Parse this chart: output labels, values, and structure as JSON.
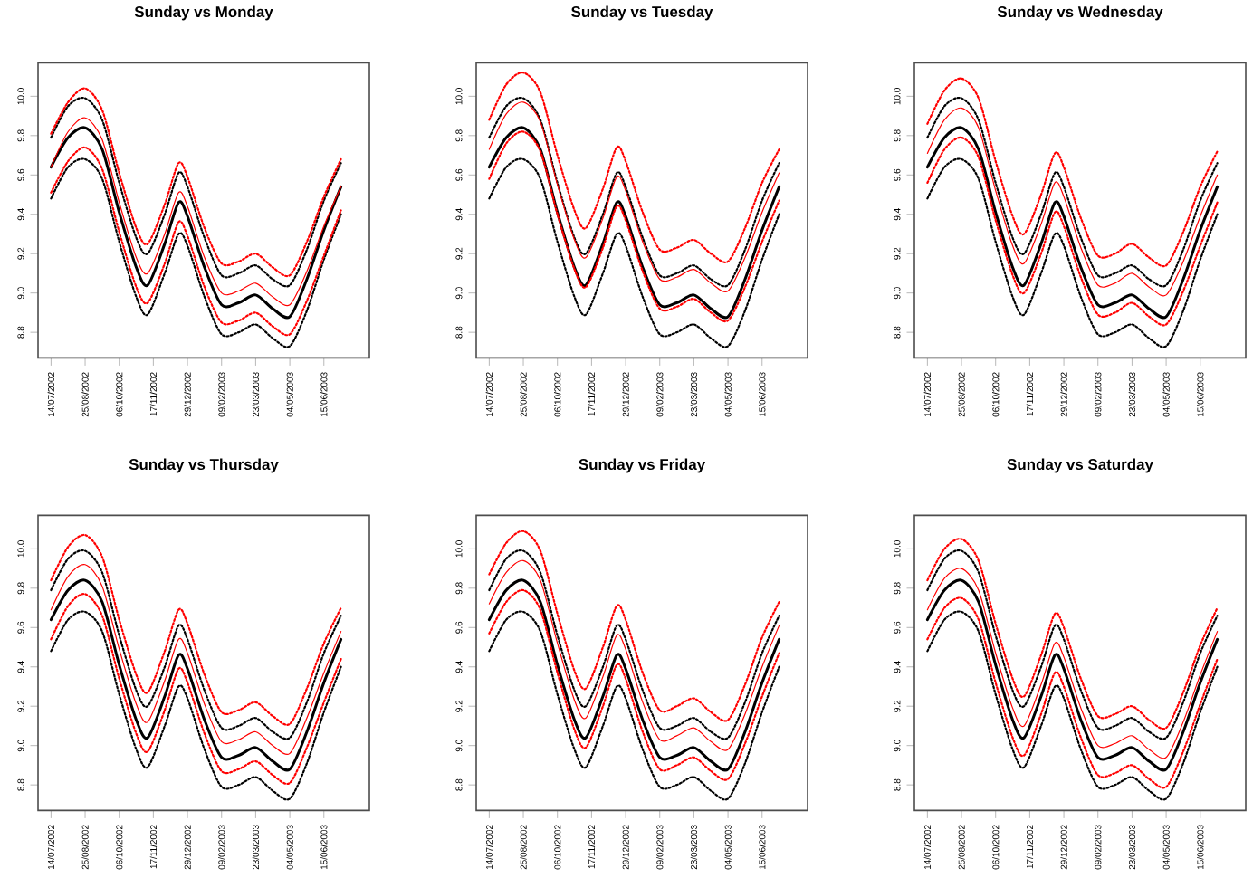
{
  "chart_data": [
    {
      "type": "line",
      "title": "Sunday vs Monday",
      "marker": "none",
      "x": [
        "2002-07-14",
        "2002-08-04",
        "2002-08-25",
        "2002-09-15",
        "2002-10-06",
        "2002-10-27",
        "2002-11-10",
        "2002-12-01",
        "2002-12-18",
        "2002-12-29",
        "2003-01-19",
        "2003-02-09",
        "2003-03-02",
        "2003-03-23",
        "2003-04-13",
        "2003-05-04",
        "2003-05-25",
        "2003-06-15",
        "2003-07-06"
      ],
      "xlim": [
        "2002-06-28",
        "2003-08-10"
      ],
      "xticks": [
        {
          "value": "2002-07-14",
          "label": "14/07/2002"
        },
        {
          "value": "2002-08-25",
          "label": "25/08/2002"
        },
        {
          "value": "2002-10-06",
          "label": "06/10/2002"
        },
        {
          "value": "2002-11-17",
          "label": "17/11/2002"
        },
        {
          "value": "2002-12-29",
          "label": "29/12/2002"
        },
        {
          "value": "2003-02-09",
          "label": "09/02/2003"
        },
        {
          "value": "2003-03-23",
          "label": "23/03/2003"
        },
        {
          "value": "2003-05-04",
          "label": "04/05/2003"
        },
        {
          "value": "2003-06-15",
          "label": "15/06/2003"
        }
      ],
      "ylim": [
        8.67,
        10.17
      ],
      "yticks": [
        {
          "value": 8.8,
          "label": "8.8"
        },
        {
          "value": 9.0,
          "label": "9.0"
        },
        {
          "value": 9.2,
          "label": "9.2"
        },
        {
          "value": 9.4,
          "label": "9.4"
        },
        {
          "value": 9.6,
          "label": "9.6"
        },
        {
          "value": 9.8,
          "label": "9.8"
        },
        {
          "value": 10.0,
          "label": "10.0"
        }
      ],
      "series": [
        {
          "color": "#000000",
          "line_style": "solid",
          "values": [
            9.64,
            9.79,
            9.84,
            9.73,
            9.41,
            9.13,
            9.04,
            9.25,
            9.46,
            9.39,
            9.13,
            8.94,
            8.95,
            8.99,
            8.92,
            8.88,
            9.07,
            9.32,
            9.54
          ]
        },
        {
          "color": "#000000",
          "line_style": "dotted",
          "values": [
            9.79,
            9.95,
            9.99,
            9.88,
            9.56,
            9.28,
            9.2,
            9.4,
            9.61,
            9.54,
            9.28,
            9.09,
            9.1,
            9.14,
            9.07,
            9.04,
            9.22,
            9.47,
            9.66
          ]
        },
        {
          "color": "#000000",
          "line_style": "dotted",
          "values": [
            9.48,
            9.64,
            9.68,
            9.58,
            9.26,
            8.98,
            8.89,
            9.1,
            9.3,
            9.24,
            8.98,
            8.79,
            8.8,
            8.84,
            8.77,
            8.73,
            8.91,
            9.17,
            9.4
          ]
        },
        {
          "color": "#ff0000",
          "line_style": "solid",
          "values": [
            9.64,
            9.82,
            9.89,
            9.78,
            9.46,
            9.18,
            9.1,
            9.3,
            9.51,
            9.44,
            9.18,
            9.0,
            9.01,
            9.05,
            8.98,
            8.94,
            9.11,
            9.34,
            9.54
          ]
        },
        {
          "color": "#ff0000",
          "line_style": "dotted",
          "values": [
            9.81,
            9.97,
            10.04,
            9.93,
            9.61,
            9.33,
            9.25,
            9.45,
            9.66,
            9.59,
            9.33,
            9.15,
            9.16,
            9.2,
            9.13,
            9.09,
            9.26,
            9.49,
            9.68
          ]
        },
        {
          "color": "#ff0000",
          "line_style": "dotted",
          "values": [
            9.51,
            9.67,
            9.74,
            9.63,
            9.31,
            9.03,
            8.95,
            9.15,
            9.36,
            9.29,
            9.03,
            8.85,
            8.86,
            8.9,
            8.83,
            8.79,
            8.96,
            9.19,
            9.42
          ]
        }
      ]
    },
    {
      "type": "line",
      "title": "Sunday vs Tuesday",
      "marker": "none",
      "x": [
        "2002-07-14",
        "2002-08-04",
        "2002-08-25",
        "2002-09-15",
        "2002-10-06",
        "2002-10-27",
        "2002-11-10",
        "2002-12-01",
        "2002-12-18",
        "2002-12-29",
        "2003-01-19",
        "2003-02-09",
        "2003-03-02",
        "2003-03-23",
        "2003-04-13",
        "2003-05-04",
        "2003-05-25",
        "2003-06-15",
        "2003-07-06"
      ],
      "xlim": [
        "2002-06-28",
        "2003-08-10"
      ],
      "xticks": [
        {
          "value": "2002-07-14",
          "label": "14/07/2002"
        },
        {
          "value": "2002-08-25",
          "label": "25/08/2002"
        },
        {
          "value": "2002-10-06",
          "label": "06/10/2002"
        },
        {
          "value": "2002-11-17",
          "label": "17/11/2002"
        },
        {
          "value": "2002-12-29",
          "label": "29/12/2002"
        },
        {
          "value": "2003-02-09",
          "label": "09/02/2003"
        },
        {
          "value": "2003-03-23",
          "label": "23/03/2003"
        },
        {
          "value": "2003-05-04",
          "label": "04/05/2003"
        },
        {
          "value": "2003-06-15",
          "label": "15/06/2003"
        }
      ],
      "ylim": [
        8.67,
        10.17
      ],
      "yticks": [
        {
          "value": 8.8,
          "label": "8.8"
        },
        {
          "value": 9.0,
          "label": "9.0"
        },
        {
          "value": 9.2,
          "label": "9.2"
        },
        {
          "value": 9.4,
          "label": "9.4"
        },
        {
          "value": 9.6,
          "label": "9.6"
        },
        {
          "value": 9.8,
          "label": "9.8"
        },
        {
          "value": 10.0,
          "label": "10.0"
        }
      ],
      "series": [
        {
          "color": "#000000",
          "line_style": "solid",
          "values": [
            9.64,
            9.79,
            9.84,
            9.73,
            9.41,
            9.13,
            9.04,
            9.25,
            9.46,
            9.39,
            9.13,
            8.94,
            8.95,
            8.99,
            8.92,
            8.88,
            9.07,
            9.32,
            9.54
          ]
        },
        {
          "color": "#000000",
          "line_style": "dotted",
          "values": [
            9.79,
            9.95,
            9.99,
            9.88,
            9.56,
            9.28,
            9.2,
            9.4,
            9.61,
            9.54,
            9.28,
            9.09,
            9.1,
            9.14,
            9.07,
            9.04,
            9.22,
            9.47,
            9.66
          ]
        },
        {
          "color": "#000000",
          "line_style": "dotted",
          "values": [
            9.48,
            9.64,
            9.68,
            9.58,
            9.26,
            8.98,
            8.89,
            9.1,
            9.3,
            9.24,
            8.98,
            8.79,
            8.8,
            8.84,
            8.77,
            8.73,
            8.91,
            9.17,
            9.4
          ]
        },
        {
          "color": "#ff0000",
          "line_style": "solid",
          "values": [
            9.73,
            9.91,
            9.97,
            9.87,
            9.55,
            9.27,
            9.18,
            9.38,
            9.59,
            9.52,
            9.26,
            9.07,
            9.08,
            9.12,
            9.05,
            9.01,
            9.18,
            9.41,
            9.61
          ]
        },
        {
          "color": "#ff0000",
          "line_style": "dotted",
          "values": [
            9.88,
            10.06,
            10.12,
            10.02,
            9.7,
            9.42,
            9.33,
            9.53,
            9.74,
            9.67,
            9.41,
            9.22,
            9.23,
            9.27,
            9.2,
            9.16,
            9.33,
            9.56,
            9.73
          ]
        },
        {
          "color": "#ff0000",
          "line_style": "dotted",
          "values": [
            9.58,
            9.76,
            9.82,
            9.72,
            9.4,
            9.12,
            9.03,
            9.23,
            9.44,
            9.37,
            9.11,
            8.92,
            8.93,
            8.97,
            8.9,
            8.86,
            9.03,
            9.26,
            9.47
          ]
        }
      ]
    },
    {
      "type": "line",
      "title": "Sunday vs Wednesday",
      "marker": "none",
      "x": [
        "2002-07-14",
        "2002-08-04",
        "2002-08-25",
        "2002-09-15",
        "2002-10-06",
        "2002-10-27",
        "2002-11-10",
        "2002-12-01",
        "2002-12-18",
        "2002-12-29",
        "2003-01-19",
        "2003-02-09",
        "2003-03-02",
        "2003-03-23",
        "2003-04-13",
        "2003-05-04",
        "2003-05-25",
        "2003-06-15",
        "2003-07-06"
      ],
      "xlim": [
        "2002-06-28",
        "2003-08-10"
      ],
      "xticks": [
        {
          "value": "2002-07-14",
          "label": "14/07/2002"
        },
        {
          "value": "2002-08-25",
          "label": "25/08/2002"
        },
        {
          "value": "2002-10-06",
          "label": "06/10/2002"
        },
        {
          "value": "2002-11-17",
          "label": "17/11/2002"
        },
        {
          "value": "2002-12-29",
          "label": "29/12/2002"
        },
        {
          "value": "2003-02-09",
          "label": "09/02/2003"
        },
        {
          "value": "2003-03-23",
          "label": "23/03/2003"
        },
        {
          "value": "2003-05-04",
          "label": "04/05/2003"
        },
        {
          "value": "2003-06-15",
          "label": "15/06/2003"
        }
      ],
      "ylim": [
        8.67,
        10.17
      ],
      "yticks": [
        {
          "value": 8.8,
          "label": "8.8"
        },
        {
          "value": 9.0,
          "label": "9.0"
        },
        {
          "value": 9.2,
          "label": "9.2"
        },
        {
          "value": 9.4,
          "label": "9.4"
        },
        {
          "value": 9.6,
          "label": "9.6"
        },
        {
          "value": 9.8,
          "label": "9.8"
        },
        {
          "value": 10.0,
          "label": "10.0"
        }
      ],
      "series": [
        {
          "color": "#000000",
          "line_style": "solid",
          "values": [
            9.64,
            9.79,
            9.84,
            9.73,
            9.41,
            9.13,
            9.04,
            9.25,
            9.46,
            9.39,
            9.13,
            8.94,
            8.95,
            8.99,
            8.92,
            8.88,
            9.07,
            9.32,
            9.54
          ]
        },
        {
          "color": "#000000",
          "line_style": "dotted",
          "values": [
            9.79,
            9.95,
            9.99,
            9.88,
            9.56,
            9.28,
            9.2,
            9.4,
            9.61,
            9.54,
            9.28,
            9.09,
            9.1,
            9.14,
            9.07,
            9.04,
            9.22,
            9.47,
            9.66
          ]
        },
        {
          "color": "#000000",
          "line_style": "dotted",
          "values": [
            9.48,
            9.64,
            9.68,
            9.58,
            9.26,
            8.98,
            8.89,
            9.1,
            9.3,
            9.24,
            8.98,
            8.79,
            8.8,
            8.84,
            8.77,
            8.73,
            8.91,
            9.17,
            9.4
          ]
        },
        {
          "color": "#ff0000",
          "line_style": "solid",
          "values": [
            9.71,
            9.88,
            9.94,
            9.84,
            9.52,
            9.24,
            9.15,
            9.35,
            9.56,
            9.49,
            9.23,
            9.04,
            9.05,
            9.1,
            9.03,
            8.99,
            9.16,
            9.39,
            9.6
          ]
        },
        {
          "color": "#ff0000",
          "line_style": "dotted",
          "values": [
            9.86,
            10.03,
            10.09,
            9.99,
            9.67,
            9.39,
            9.3,
            9.5,
            9.71,
            9.64,
            9.38,
            9.19,
            9.2,
            9.25,
            9.18,
            9.14,
            9.31,
            9.54,
            9.72
          ]
        },
        {
          "color": "#ff0000",
          "line_style": "dotted",
          "values": [
            9.56,
            9.73,
            9.79,
            9.69,
            9.37,
            9.09,
            9.0,
            9.2,
            9.41,
            9.34,
            9.08,
            8.89,
            8.9,
            8.95,
            8.88,
            8.84,
            9.01,
            9.24,
            9.46
          ]
        }
      ]
    },
    {
      "type": "line",
      "title": "Sunday vs Thursday",
      "marker": "none",
      "x": [
        "2002-07-14",
        "2002-08-04",
        "2002-08-25",
        "2002-09-15",
        "2002-10-06",
        "2002-10-27",
        "2002-11-10",
        "2002-12-01",
        "2002-12-18",
        "2002-12-29",
        "2003-01-19",
        "2003-02-09",
        "2003-03-02",
        "2003-03-23",
        "2003-04-13",
        "2003-05-04",
        "2003-05-25",
        "2003-06-15",
        "2003-07-06"
      ],
      "xlim": [
        "2002-06-28",
        "2003-08-10"
      ],
      "xticks": [
        {
          "value": "2002-07-14",
          "label": "14/07/2002"
        },
        {
          "value": "2002-08-25",
          "label": "25/08/2002"
        },
        {
          "value": "2002-10-06",
          "label": "06/10/2002"
        },
        {
          "value": "2002-11-17",
          "label": "17/11/2002"
        },
        {
          "value": "2002-12-29",
          "label": "29/12/2002"
        },
        {
          "value": "2003-02-09",
          "label": "09/02/2003"
        },
        {
          "value": "2003-03-23",
          "label": "23/03/2003"
        },
        {
          "value": "2003-05-04",
          "label": "04/05/2003"
        },
        {
          "value": "2003-06-15",
          "label": "15/06/2003"
        }
      ],
      "ylim": [
        8.67,
        10.17
      ],
      "yticks": [
        {
          "value": 8.8,
          "label": "8.8"
        },
        {
          "value": 9.0,
          "label": "9.0"
        },
        {
          "value": 9.2,
          "label": "9.2"
        },
        {
          "value": 9.4,
          "label": "9.4"
        },
        {
          "value": 9.6,
          "label": "9.6"
        },
        {
          "value": 9.8,
          "label": "9.8"
        },
        {
          "value": 10.0,
          "label": "10.0"
        }
      ],
      "series": [
        {
          "color": "#000000",
          "line_style": "solid",
          "values": [
            9.64,
            9.79,
            9.84,
            9.73,
            9.41,
            9.13,
            9.04,
            9.25,
            9.46,
            9.39,
            9.13,
            8.94,
            8.95,
            8.99,
            8.92,
            8.88,
            9.07,
            9.32,
            9.54
          ]
        },
        {
          "color": "#000000",
          "line_style": "dotted",
          "values": [
            9.79,
            9.95,
            9.99,
            9.88,
            9.56,
            9.28,
            9.2,
            9.4,
            9.61,
            9.54,
            9.28,
            9.09,
            9.1,
            9.14,
            9.07,
            9.04,
            9.22,
            9.47,
            9.66
          ]
        },
        {
          "color": "#000000",
          "line_style": "dotted",
          "values": [
            9.48,
            9.64,
            9.68,
            9.58,
            9.26,
            8.98,
            8.89,
            9.1,
            9.3,
            9.24,
            8.98,
            8.79,
            8.8,
            8.84,
            8.77,
            8.73,
            8.91,
            9.17,
            9.4
          ]
        },
        {
          "color": "#ff0000",
          "line_style": "solid",
          "values": [
            9.69,
            9.86,
            9.92,
            9.81,
            9.49,
            9.21,
            9.12,
            9.33,
            9.54,
            9.47,
            9.21,
            9.02,
            9.03,
            9.07,
            9.0,
            8.96,
            9.14,
            9.37,
            9.58
          ]
        },
        {
          "color": "#ff0000",
          "line_style": "dotted",
          "values": [
            9.84,
            10.01,
            10.07,
            9.96,
            9.64,
            9.36,
            9.27,
            9.48,
            9.69,
            9.62,
            9.36,
            9.17,
            9.18,
            9.22,
            9.15,
            9.11,
            9.29,
            9.52,
            9.7
          ]
        },
        {
          "color": "#ff0000",
          "line_style": "dotted",
          "values": [
            9.54,
            9.71,
            9.77,
            9.66,
            9.34,
            9.06,
            8.97,
            9.18,
            9.39,
            9.32,
            9.06,
            8.87,
            8.88,
            8.92,
            8.85,
            8.81,
            8.99,
            9.22,
            9.44
          ]
        }
      ]
    },
    {
      "type": "line",
      "title": "Sunday vs Friday",
      "marker": "none",
      "x": [
        "2002-07-14",
        "2002-08-04",
        "2002-08-25",
        "2002-09-15",
        "2002-10-06",
        "2002-10-27",
        "2002-11-10",
        "2002-12-01",
        "2002-12-18",
        "2002-12-29",
        "2003-01-19",
        "2003-02-09",
        "2003-03-02",
        "2003-03-23",
        "2003-04-13",
        "2003-05-04",
        "2003-05-25",
        "2003-06-15",
        "2003-07-06"
      ],
      "xlim": [
        "2002-06-28",
        "2003-08-10"
      ],
      "xticks": [
        {
          "value": "2002-07-14",
          "label": "14/07/2002"
        },
        {
          "value": "2002-08-25",
          "label": "25/08/2002"
        },
        {
          "value": "2002-10-06",
          "label": "06/10/2002"
        },
        {
          "value": "2002-11-17",
          "label": "17/11/2002"
        },
        {
          "value": "2002-12-29",
          "label": "29/12/2002"
        },
        {
          "value": "2003-02-09",
          "label": "09/02/2003"
        },
        {
          "value": "2003-03-23",
          "label": "23/03/2003"
        },
        {
          "value": "2003-05-04",
          "label": "04/05/2003"
        },
        {
          "value": "2003-06-15",
          "label": "15/06/2003"
        }
      ],
      "ylim": [
        8.67,
        10.17
      ],
      "yticks": [
        {
          "value": 8.8,
          "label": "8.8"
        },
        {
          "value": 9.0,
          "label": "9.0"
        },
        {
          "value": 9.2,
          "label": "9.2"
        },
        {
          "value": 9.4,
          "label": "9.4"
        },
        {
          "value": 9.6,
          "label": "9.6"
        },
        {
          "value": 9.8,
          "label": "9.8"
        },
        {
          "value": 10.0,
          "label": "10.0"
        }
      ],
      "series": [
        {
          "color": "#000000",
          "line_style": "solid",
          "values": [
            9.64,
            9.79,
            9.84,
            9.73,
            9.41,
            9.13,
            9.04,
            9.25,
            9.46,
            9.39,
            9.13,
            8.94,
            8.95,
            8.99,
            8.92,
            8.88,
            9.07,
            9.32,
            9.54
          ]
        },
        {
          "color": "#000000",
          "line_style": "dotted",
          "values": [
            9.79,
            9.95,
            9.99,
            9.88,
            9.56,
            9.28,
            9.2,
            9.4,
            9.61,
            9.54,
            9.28,
            9.09,
            9.1,
            9.14,
            9.07,
            9.04,
            9.22,
            9.47,
            9.66
          ]
        },
        {
          "color": "#000000",
          "line_style": "dotted",
          "values": [
            9.48,
            9.64,
            9.68,
            9.58,
            9.26,
            8.98,
            8.89,
            9.1,
            9.3,
            9.24,
            8.98,
            8.79,
            8.8,
            8.84,
            8.77,
            8.73,
            8.91,
            9.17,
            9.4
          ]
        },
        {
          "color": "#ff0000",
          "line_style": "solid",
          "values": [
            9.72,
            9.88,
            9.94,
            9.84,
            9.52,
            9.23,
            9.14,
            9.35,
            9.56,
            9.49,
            9.22,
            9.03,
            9.05,
            9.09,
            9.02,
            8.98,
            9.16,
            9.4,
            9.61
          ]
        },
        {
          "color": "#ff0000",
          "line_style": "dotted",
          "values": [
            9.87,
            10.03,
            10.09,
            9.99,
            9.67,
            9.38,
            9.29,
            9.5,
            9.71,
            9.64,
            9.37,
            9.18,
            9.2,
            9.24,
            9.17,
            9.13,
            9.31,
            9.55,
            9.73
          ]
        },
        {
          "color": "#ff0000",
          "line_style": "dotted",
          "values": [
            9.57,
            9.73,
            9.79,
            9.69,
            9.37,
            9.08,
            8.99,
            9.2,
            9.41,
            9.34,
            9.07,
            8.88,
            8.9,
            8.94,
            8.87,
            8.83,
            9.01,
            9.25,
            9.47
          ]
        }
      ]
    },
    {
      "type": "line",
      "title": "Sunday vs Saturday",
      "marker": "none",
      "x": [
        "2002-07-14",
        "2002-08-04",
        "2002-08-25",
        "2002-09-15",
        "2002-10-06",
        "2002-10-27",
        "2002-11-10",
        "2002-12-01",
        "2002-12-18",
        "2002-12-29",
        "2003-01-19",
        "2003-02-09",
        "2003-03-02",
        "2003-03-23",
        "2003-04-13",
        "2003-05-04",
        "2003-05-25",
        "2003-06-15",
        "2003-07-06"
      ],
      "xlim": [
        "2002-06-28",
        "2003-08-10"
      ],
      "xticks": [
        {
          "value": "2002-07-14",
          "label": "14/07/2002"
        },
        {
          "value": "2002-08-25",
          "label": "25/08/2002"
        },
        {
          "value": "2002-10-06",
          "label": "06/10/2002"
        },
        {
          "value": "2002-11-17",
          "label": "17/11/2002"
        },
        {
          "value": "2002-12-29",
          "label": "29/12/2002"
        },
        {
          "value": "2003-02-09",
          "label": "09/02/2003"
        },
        {
          "value": "2003-03-23",
          "label": "23/03/2003"
        },
        {
          "value": "2003-05-04",
          "label": "04/05/2003"
        },
        {
          "value": "2003-06-15",
          "label": "15/06/2003"
        }
      ],
      "ylim": [
        8.67,
        10.17
      ],
      "yticks": [
        {
          "value": 8.8,
          "label": "8.8"
        },
        {
          "value": 9.0,
          "label": "9.0"
        },
        {
          "value": 9.2,
          "label": "9.2"
        },
        {
          "value": 9.4,
          "label": "9.4"
        },
        {
          "value": 9.6,
          "label": "9.6"
        },
        {
          "value": 9.8,
          "label": "9.8"
        },
        {
          "value": 10.0,
          "label": "10.0"
        }
      ],
      "series": [
        {
          "color": "#000000",
          "line_style": "solid",
          "values": [
            9.64,
            9.79,
            9.84,
            9.73,
            9.41,
            9.13,
            9.04,
            9.25,
            9.46,
            9.39,
            9.13,
            8.94,
            8.95,
            8.99,
            8.92,
            8.88,
            9.07,
            9.32,
            9.54
          ]
        },
        {
          "color": "#000000",
          "line_style": "dotted",
          "values": [
            9.79,
            9.95,
            9.99,
            9.88,
            9.56,
            9.28,
            9.2,
            9.4,
            9.61,
            9.54,
            9.28,
            9.09,
            9.1,
            9.14,
            9.07,
            9.04,
            9.22,
            9.47,
            9.66
          ]
        },
        {
          "color": "#000000",
          "line_style": "dotted",
          "values": [
            9.48,
            9.64,
            9.68,
            9.58,
            9.26,
            8.98,
            8.89,
            9.1,
            9.3,
            9.24,
            8.98,
            8.79,
            8.8,
            8.84,
            8.77,
            8.73,
            8.91,
            9.17,
            9.4
          ]
        },
        {
          "color": "#ff0000",
          "line_style": "solid",
          "values": [
            9.69,
            9.85,
            9.9,
            9.79,
            9.47,
            9.19,
            9.1,
            9.31,
            9.52,
            9.45,
            9.19,
            9.0,
            9.01,
            9.05,
            8.98,
            8.94,
            9.12,
            9.36,
            9.58
          ]
        },
        {
          "color": "#ff0000",
          "line_style": "dotted",
          "values": [
            9.84,
            10.0,
            10.05,
            9.94,
            9.62,
            9.34,
            9.25,
            9.46,
            9.67,
            9.6,
            9.34,
            9.15,
            9.16,
            9.2,
            9.13,
            9.09,
            9.27,
            9.51,
            9.7
          ]
        },
        {
          "color": "#ff0000",
          "line_style": "dotted",
          "values": [
            9.54,
            9.7,
            9.75,
            9.64,
            9.32,
            9.04,
            8.95,
            9.16,
            9.37,
            9.3,
            9.04,
            8.85,
            8.86,
            8.9,
            8.83,
            8.79,
            8.97,
            9.21,
            9.44
          ]
        }
      ]
    }
  ]
}
